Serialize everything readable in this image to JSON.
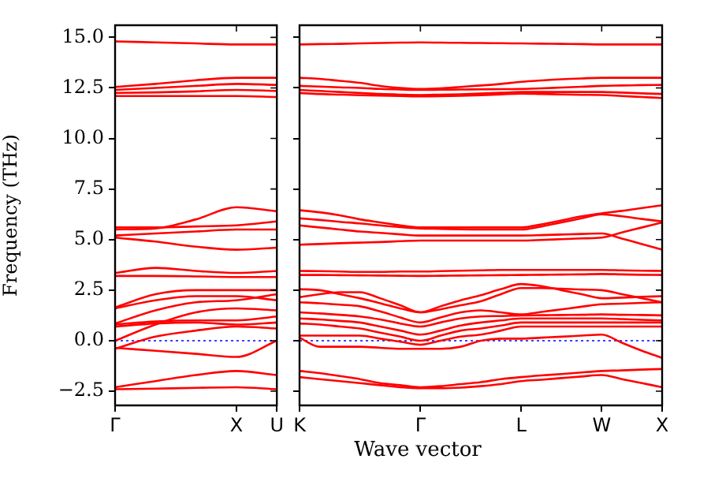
{
  "chart_data": [
    {
      "type": "line",
      "ylabel": "Frequency (THz)",
      "categories": [
        "Γ",
        null,
        null,
        "X",
        "U"
      ],
      "ylim": [
        -3.2,
        15.6
      ],
      "yticks": [
        {
          "value": -2.5,
          "label": "−2.5"
        },
        {
          "value": 0,
          "label": "0.0"
        },
        {
          "value": 2.5,
          "label": "2.5"
        },
        {
          "value": 5,
          "label": "5.0"
        },
        {
          "value": 7.5,
          "label": "7.5"
        },
        {
          "value": 10,
          "label": "10.0"
        },
        {
          "value": 12.5,
          "label": "12.5"
        },
        {
          "value": 15,
          "label": "15.0"
        }
      ],
      "grid": false,
      "legend": false,
      "marker": "none",
      "line_style": "solid",
      "ref_lines": [
        {
          "axis": "y",
          "value": 0,
          "color": "#0000ff",
          "line_style": "dotted"
        }
      ],
      "series": [
        {
          "color": "#ff0000",
          "values": [
            14.8,
            14.75,
            14.7,
            14.65,
            14.65
          ]
        },
        {
          "color": "#ff0000",
          "values": [
            12.55,
            12.7,
            12.88,
            13.0,
            13.0
          ]
        },
        {
          "color": "#ff0000",
          "values": [
            12.4,
            12.5,
            12.6,
            12.7,
            12.65
          ]
        },
        {
          "color": "#ff0000",
          "values": [
            12.25,
            12.28,
            12.33,
            12.4,
            12.35
          ]
        },
        {
          "color": "#ff0000",
          "values": [
            12.1,
            12.1,
            12.1,
            12.1,
            12.05
          ]
        },
        {
          "color": "#ff0000",
          "values": [
            5.5,
            5.55,
            6.0,
            6.6,
            6.4
          ]
        },
        {
          "color": "#ff0000",
          "values": [
            5.6,
            5.6,
            5.65,
            5.7,
            5.9
          ]
        },
        {
          "color": "#ff0000",
          "values": [
            5.2,
            5.3,
            5.4,
            5.5,
            5.5
          ]
        },
        {
          "color": "#ff0000",
          "values": [
            5.1,
            4.9,
            4.65,
            4.5,
            4.6
          ]
        },
        {
          "color": "#ff0000",
          "values": [
            3.35,
            3.6,
            3.45,
            3.35,
            3.45
          ]
        },
        {
          "color": "#ff0000",
          "values": [
            3.2,
            3.2,
            3.18,
            3.15,
            3.15
          ]
        },
        {
          "color": "#ff0000",
          "values": [
            1.65,
            2.3,
            2.5,
            2.5,
            2.5
          ]
        },
        {
          "color": "#ff0000",
          "values": [
            1.6,
            2.0,
            2.2,
            2.2,
            2.0
          ]
        },
        {
          "color": "#ff0000",
          "values": [
            0.85,
            1.5,
            1.9,
            2.0,
            2.3
          ]
        },
        {
          "color": "#ff0000",
          "values": [
            0.8,
            0.95,
            1.0,
            1.0,
            1.2
          ]
        },
        {
          "color": "#ff0000",
          "values": [
            0.7,
            0.85,
            0.9,
            0.8,
            0.9
          ]
        },
        {
          "color": "#ff0000",
          "values": [
            -0.35,
            -0.5,
            -0.65,
            -0.8,
            0
          ]
        },
        {
          "color": "#ff0000",
          "values": [
            0,
            0.8,
            1.4,
            1.6,
            1.5
          ]
        },
        {
          "color": "#ff0000",
          "values": [
            -0.4,
            0.2,
            0.5,
            0.7,
            0.6
          ]
        },
        {
          "color": "#ff0000",
          "values": [
            -2.3,
            -2.0,
            -1.7,
            -1.5,
            -1.7
          ]
        },
        {
          "color": "#ff0000",
          "values": [
            -2.4,
            -2.37,
            -2.33,
            -2.3,
            -2.4
          ]
        }
      ]
    },
    {
      "type": "line",
      "xlabel": "Wave vector",
      "categories": [
        "K",
        null,
        null,
        null,
        null,
        null,
        "Γ",
        null,
        null,
        null,
        null,
        "L",
        null,
        null,
        null,
        "W",
        null,
        null,
        "X"
      ],
      "ylim": [
        -3.2,
        15.6
      ],
      "yticks": [
        {
          "value": -2.5,
          "label": null
        },
        {
          "value": 0,
          "label": null
        },
        {
          "value": 2.5,
          "label": null
        },
        {
          "value": 5,
          "label": null
        },
        {
          "value": 7.5,
          "label": null
        },
        {
          "value": 10,
          "label": null
        },
        {
          "value": 12.5,
          "label": null
        },
        {
          "value": 15,
          "label": null
        }
      ],
      "tick_labels": "x",
      "grid": false,
      "legend": false,
      "marker": "none",
      "line_style": "solid",
      "ref_lines": [
        {
          "axis": "y",
          "value": 0,
          "color": "#0000ff",
          "line_style": "dotted"
        }
      ],
      "series": [
        {
          "color": "#ff0000",
          "values": [
            14.65,
            14.67,
            14.68,
            14.7,
            14.72,
            14.74,
            14.75,
            14.74,
            14.73,
            14.72,
            14.71,
            14.7,
            14.69,
            14.68,
            14.67,
            14.65,
            14.65,
            14.65,
            14.65
          ]
        },
        {
          "color": "#ff0000",
          "values": [
            13.0,
            12.95,
            12.85,
            12.75,
            12.6,
            12.5,
            12.45,
            12.48,
            12.55,
            12.62,
            12.7,
            12.8,
            12.87,
            12.93,
            12.97,
            13.0,
            13.0,
            13.0,
            13.0
          ]
        },
        {
          "color": "#ff0000",
          "values": [
            12.6,
            12.57,
            12.53,
            12.5,
            12.45,
            12.42,
            12.4,
            12.41,
            12.42,
            12.43,
            12.44,
            12.45,
            12.48,
            12.52,
            12.56,
            12.6,
            12.62,
            12.64,
            12.65
          ]
        },
        {
          "color": "#ff0000",
          "values": [
            12.4,
            12.35,
            12.3,
            12.25,
            12.2,
            12.17,
            12.15,
            12.17,
            12.19,
            12.22,
            12.26,
            12.3,
            12.3,
            12.3,
            12.3,
            12.3,
            12.27,
            12.23,
            12.2
          ]
        },
        {
          "color": "#ff0000",
          "values": [
            12.25,
            12.2,
            12.17,
            12.14,
            12.12,
            12.1,
            12.08,
            12.09,
            12.11,
            12.14,
            12.18,
            12.22,
            12.2,
            12.18,
            12.16,
            12.15,
            12.1,
            12.05,
            12.0
          ]
        },
        {
          "color": "#ff0000",
          "values": [
            6.45,
            6.35,
            6.2,
            6.0,
            5.85,
            5.7,
            5.6,
            5.6,
            5.6,
            5.6,
            5.6,
            5.6,
            5.75,
            5.95,
            6.15,
            6.3,
            6.42,
            6.56,
            6.7
          ]
        },
        {
          "color": "#ff0000",
          "values": [
            6.05,
            5.97,
            5.88,
            5.8,
            5.7,
            5.62,
            5.55,
            5.53,
            5.51,
            5.5,
            5.5,
            5.5,
            5.65,
            5.85,
            6.05,
            6.25,
            6.15,
            6.02,
            5.9
          ]
        },
        {
          "color": "#ff0000",
          "values": [
            5.7,
            5.6,
            5.5,
            5.4,
            5.33,
            5.26,
            5.2,
            5.2,
            5.2,
            5.2,
            5.2,
            5.2,
            5.22,
            5.25,
            5.28,
            5.3,
            5.05,
            4.78,
            4.5
          ]
        },
        {
          "color": "#ff0000",
          "values": [
            4.75,
            4.78,
            4.82,
            4.85,
            4.88,
            4.92,
            4.95,
            4.95,
            4.95,
            4.95,
            4.95,
            4.95,
            4.98,
            5.02,
            5.06,
            5.1,
            5.35,
            5.6,
            5.85
          ]
        },
        {
          "color": "#ff0000",
          "values": [
            3.45,
            3.44,
            3.42,
            3.4,
            3.4,
            3.42,
            3.42,
            3.44,
            3.46,
            3.48,
            3.5,
            3.5,
            3.5,
            3.5,
            3.5,
            3.5,
            3.48,
            3.46,
            3.45
          ]
        },
        {
          "color": "#ff0000",
          "values": [
            3.25,
            3.25,
            3.24,
            3.23,
            3.22,
            3.21,
            3.2,
            3.21,
            3.22,
            3.23,
            3.24,
            3.25,
            3.26,
            3.27,
            3.28,
            3.3,
            3.28,
            3.26,
            3.25
          ]
        },
        {
          "color": "#ff0000",
          "values": [
            2.55,
            2.5,
            2.3,
            2.1,
            1.85,
            1.6,
            1.4,
            1.7,
            2.0,
            2.25,
            2.55,
            2.8,
            2.7,
            2.5,
            2.3,
            2.1,
            2.13,
            2.17,
            2.2
          ]
        },
        {
          "color": "#ff0000",
          "values": [
            2.15,
            2.3,
            2.4,
            2.4,
            2.1,
            1.75,
            1.4,
            1.55,
            1.75,
            1.95,
            2.3,
            2.6,
            2.6,
            2.57,
            2.53,
            2.5,
            2.3,
            2.1,
            1.9
          ]
        },
        {
          "color": "#ff0000",
          "values": [
            1.9,
            1.85,
            1.78,
            1.7,
            1.45,
            1.15,
            0.9,
            1.15,
            1.4,
            1.5,
            1.4,
            1.3,
            1.42,
            1.55,
            1.68,
            1.8,
            1.83,
            1.87,
            1.9
          ]
        },
        {
          "color": "#ff0000",
          "values": [
            1.4,
            1.35,
            1.28,
            1.2,
            1.05,
            0.85,
            0.7,
            0.9,
            1.1,
            1.2,
            1.22,
            1.25,
            1.26,
            1.27,
            1.28,
            1.3,
            1.28,
            1.27,
            1.25
          ]
        },
        {
          "color": "#ff0000",
          "values": [
            1.1,
            1.05,
            0.98,
            0.9,
            0.7,
            0.5,
            0.3,
            0.5,
            0.75,
            0.9,
            1.0,
            1.1,
            1.1,
            1.1,
            1.1,
            1.1,
            1.07,
            1.03,
            1.0
          ]
        },
        {
          "color": "#ff0000",
          "values": [
            0.85,
            0.8,
            0.7,
            0.6,
            0.4,
            0.2,
            0.0,
            0.25,
            0.5,
            0.6,
            0.75,
            0.9,
            0.9,
            0.9,
            0.9,
            0.9,
            0.9,
            0.9,
            0.9
          ]
        },
        {
          "color": "#ff0000",
          "values": [
            0.15,
            -0.3,
            -0.3,
            -0.3,
            -0.35,
            -0.4,
            -0.4,
            -0.4,
            -0.3,
            0.0,
            0.1,
            0.1,
            0.15,
            0.2,
            0.25,
            0.3,
            -0.1,
            -0.5,
            -0.85
          ]
        },
        {
          "color": "#ff0000",
          "values": [
            0.25,
            0.25,
            0.25,
            0.25,
            0.1,
            -0.05,
            -0.2,
            0.0,
            0.2,
            0.3,
            0.5,
            0.7,
            0.7,
            0.7,
            0.7,
            0.7,
            0.7,
            0.7,
            0.7
          ]
        },
        {
          "color": "#ff0000",
          "values": [
            -1.5,
            -1.6,
            -1.75,
            -1.9,
            -2.1,
            -2.2,
            -2.3,
            -2.25,
            -2.15,
            -2.05,
            -1.9,
            -1.8,
            -1.72,
            -1.65,
            -1.57,
            -1.5,
            -1.47,
            -1.43,
            -1.4
          ]
        },
        {
          "color": "#ff0000",
          "values": [
            -1.8,
            -1.9,
            -2.0,
            -2.1,
            -2.2,
            -2.3,
            -2.35,
            -2.35,
            -2.32,
            -2.25,
            -2.15,
            -2.0,
            -1.93,
            -1.85,
            -1.77,
            -1.7,
            -1.9,
            -2.1,
            -2.3
          ]
        }
      ]
    }
  ]
}
